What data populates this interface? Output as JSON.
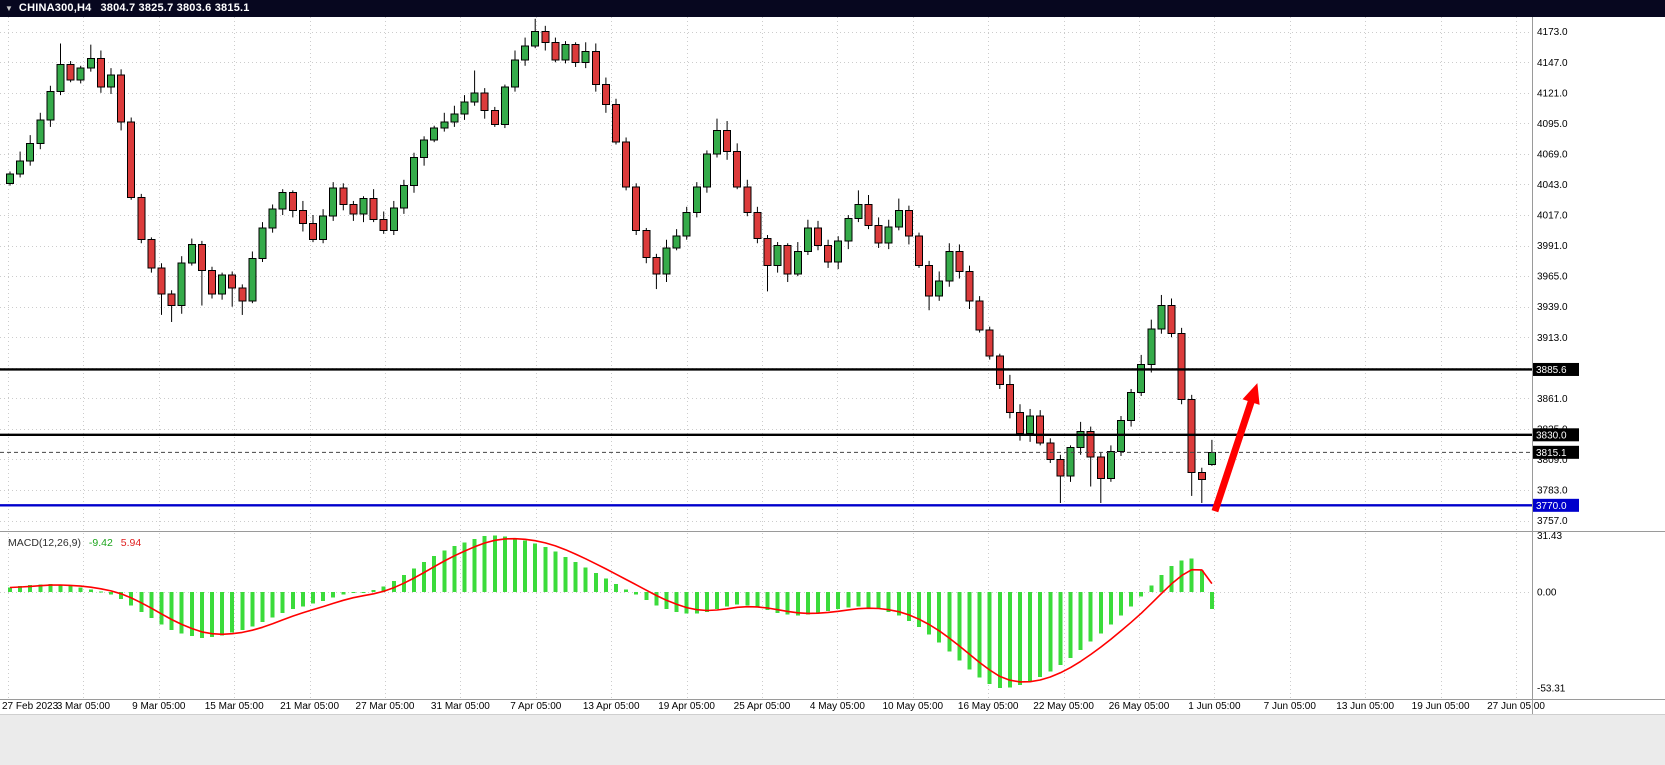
{
  "window": {
    "symbol": "CHINA300,H4",
    "ohlc": "3804.7 3825.7 3803.6 3815.1",
    "dropdown_icon": "▼"
  },
  "colors": {
    "bull": "#35ab4a",
    "bear": "#dc3b3b",
    "outline": "#000000",
    "macd_hist": "#3bdb3b",
    "macd_signal": "#ff0000",
    "grid": "#cccccc",
    "line_black": "#000000",
    "line_blue": "#0000cc",
    "bid_line": "#444444",
    "arrow": "#ff0000",
    "badge_text": "#ffffff",
    "titlebar_bg": "#07071f",
    "titlebar_text": "#ffffff",
    "axis_text": "#000000"
  },
  "hlines": [
    {
      "label": "3885.6",
      "price": 3885.6,
      "color": "#000000"
    },
    {
      "label": "3830.0",
      "price": 3830.0,
      "color": "#000000"
    },
    {
      "label": "3770.0",
      "price": 3770.0,
      "color": "#0000cc"
    }
  ],
  "current_price": {
    "label": "3815.1",
    "value": 3815.1
  },
  "arrow": {
    "from_bar": 119.3,
    "from_price": 3765,
    "to_bar": 123.5,
    "to_price": 3874
  },
  "chart_data": {
    "type": "candlestick",
    "title": "CHINA300,H4",
    "ylim": [
      3749,
      4185
    ],
    "y_axis_ticks": [
      4173.0,
      4147.0,
      4121.0,
      4095.0,
      4069.0,
      4043.0,
      4017.0,
      3991.0,
      3965.0,
      3939.0,
      3913.0,
      3887.0,
      3861.0,
      3835.0,
      3809.0,
      3783.0,
      3757.0
    ],
    "x_axis_labels": [
      "27 Feb 2023",
      "3 Mar 05:00",
      "9 Mar 05:00",
      "15 Mar 05:00",
      "21 Mar 05:00",
      "27 Mar 05:00",
      "31 Mar 05:00",
      "7 Apr 05:00",
      "13 Apr 05:00",
      "19 Apr 05:00",
      "25 Apr 05:00",
      "4 May 05:00",
      "10 May 05:00",
      "16 May 05:00",
      "22 May 05:00",
      "26 May 05:00",
      "1 Jun 05:00",
      "7 Jun 05:00",
      "13 Jun 05:00",
      "19 Jun 05:00",
      "27 Jun 05:00"
    ],
    "first_open": 4044,
    "closes": [
      4052,
      4063,
      4078,
      4098,
      4122,
      4145,
      4132,
      4142,
      4150,
      4126,
      4136,
      4096,
      4032,
      3996,
      3972,
      3950,
      3940,
      3976,
      3992,
      3970,
      3950,
      3966,
      3955,
      3944,
      3980,
      4006,
      4022,
      4036,
      4021,
      4010,
      3996,
      4016,
      4040,
      4026,
      4018,
      4031,
      4013,
      4004,
      4023,
      4042,
      4066,
      4081,
      4091,
      4096,
      4103,
      4113,
      4121,
      4106,
      4094,
      4126,
      4149,
      4161,
      4173,
      4164,
      4149,
      4162,
      4147,
      4156,
      4128,
      4111,
      4079,
      4041,
      4004,
      3981,
      3967,
      3989,
      3999,
      4019,
      4041,
      4069,
      4089,
      4071,
      4041,
      4019,
      3997,
      3974,
      3991,
      3967,
      3986,
      4006,
      3991,
      3977,
      3995,
      4014,
      4026,
      4008,
      3993,
      4007,
      4021,
      3999,
      3974,
      3948,
      3961,
      3986,
      3969,
      3944,
      3919,
      3897,
      3873,
      3849,
      3831,
      3846,
      3823,
      3809,
      3795,
      3819,
      3833,
      3811,
      3793,
      3816,
      3842,
      3866,
      3890,
      3920,
      3940,
      3916,
      3860,
      3798,
      3792,
      3815.1
    ],
    "last_candle": {
      "open": 3804.7,
      "high": 3825.7,
      "low": 3803.6,
      "close": 3815.1
    },
    "wicks_extra": {
      "5": [
        18,
        3
      ],
      "8": [
        12,
        3
      ],
      "15": [
        4,
        18
      ],
      "16": [
        3,
        14
      ],
      "19": [
        3,
        30
      ],
      "22": [
        3,
        16
      ],
      "23": [
        3,
        12
      ],
      "46": [
        19,
        3
      ],
      "52": [
        11,
        2
      ],
      "64": [
        3,
        13
      ],
      "70": [
        10,
        3
      ],
      "75": [
        3,
        22
      ],
      "84": [
        12,
        3
      ],
      "88": [
        10,
        3
      ],
      "91": [
        4,
        12
      ],
      "104": [
        4,
        23
      ],
      "107": [
        4,
        25
      ],
      "108": [
        4,
        21
      ],
      "112": [
        8,
        3
      ],
      "114": [
        9,
        4
      ],
      "117": [
        4,
        20
      ],
      "118": [
        4,
        20
      ]
    },
    "macd": {
      "name": "MACD(12,26,9)",
      "main_value": "-9.42",
      "signal_value": "5.94",
      "scale_labels": [
        "31.43",
        "0.00",
        "-53.31"
      ],
      "scale_values": [
        31.43,
        0,
        -53.31
      ],
      "histogram": [
        2.5,
        3.2,
        3.8,
        4.2,
        4.5,
        4.0,
        3.2,
        2.5,
        1.5,
        0.2,
        -1.5,
        -4.0,
        -7.5,
        -11.0,
        -14.5,
        -18.0,
        -21.0,
        -23.0,
        -24.5,
        -25.5,
        -25.0,
        -24.0,
        -22.5,
        -21.0,
        -19.0,
        -16.5,
        -14.0,
        -11.5,
        -9.5,
        -8.0,
        -6.5,
        -5.0,
        -3.0,
        -1.5,
        -0.5,
        0.0,
        1.0,
        3.0,
        6.0,
        9.5,
        13.0,
        16.5,
        20.0,
        23.0,
        25.5,
        27.5,
        29.5,
        31.0,
        31.4,
        30.8,
        29.8,
        28.5,
        27.0,
        25.0,
        22.5,
        19.5,
        16.5,
        13.5,
        10.5,
        7.5,
        4.5,
        1.5,
        -1.5,
        -4.5,
        -7.5,
        -9.5,
        -11.0,
        -12.0,
        -12.0,
        -11.0,
        -9.5,
        -8.0,
        -7.0,
        -7.5,
        -8.5,
        -10.0,
        -11.5,
        -12.5,
        -13.0,
        -12.5,
        -11.5,
        -10.5,
        -9.5,
        -8.5,
        -8.0,
        -8.5,
        -9.5,
        -11.0,
        -13.0,
        -16.0,
        -19.5,
        -23.5,
        -28.0,
        -33.0,
        -38.0,
        -43.0,
        -47.5,
        -51.0,
        -53.3,
        -52.8,
        -51.5,
        -49.5,
        -47.0,
        -44.0,
        -40.5,
        -36.5,
        -32.0,
        -27.5,
        -23.0,
        -18.0,
        -13.0,
        -8.0,
        -2.5,
        3.5,
        9.5,
        14.5,
        17.5,
        18.5,
        12.0,
        -9.42
      ]
    }
  }
}
